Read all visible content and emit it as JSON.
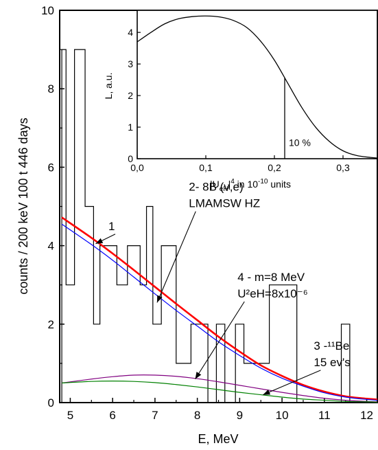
{
  "chart_data": [
    {
      "type": "line",
      "xlabel": "E, MeV",
      "ylabel": "counts / 200 keV 100 t 446 days",
      "xlim": [
        4.75,
        12.25
      ],
      "ylim": [
        0,
        10
      ],
      "x_ticks": [
        5,
        6,
        7,
        8,
        9,
        10,
        11,
        12
      ],
      "y_ticks": [
        0,
        2,
        4,
        6,
        8,
        10
      ],
      "histogram": {
        "name": "data",
        "edges": [
          4.8,
          4.9,
          5.1,
          5.35,
          5.55,
          5.7,
          6.1,
          6.35,
          6.65,
          6.8,
          6.95,
          7.15,
          7.5,
          7.85,
          8.25,
          8.45,
          8.65,
          8.9,
          9.1,
          9.7,
          10.35,
          11.4,
          11.6,
          11.85
        ],
        "counts": [
          9,
          3,
          9,
          5,
          2,
          4,
          3,
          4,
          3,
          5,
          2,
          4,
          1,
          2,
          0,
          2,
          0,
          2,
          1,
          3,
          0,
          2,
          0
        ]
      },
      "series": [
        {
          "color": "#ff0000",
          "x": [
            4.8,
            5.5,
            6,
            6.5,
            7,
            7.5,
            8,
            8.5,
            9,
            9.5,
            10,
            10.5,
            11,
            11.5,
            12,
            12.25
          ],
          "y": [
            4.72,
            4.2,
            3.8,
            3.38,
            2.95,
            2.52,
            2.1,
            1.68,
            1.3,
            0.95,
            0.68,
            0.45,
            0.28,
            0.16,
            0.1,
            0.08
          ]
        },
        {
          "color": "#0000ff",
          "x": [
            4.8,
            5.5,
            6,
            6.5,
            7,
            7.5,
            8,
            8.5,
            9,
            9.5,
            10,
            10.5,
            11,
            11.5,
            12,
            12.25
          ],
          "y": [
            4.55,
            4.03,
            3.63,
            3.2,
            2.77,
            2.35,
            1.95,
            1.55,
            1.2,
            0.88,
            0.62,
            0.42,
            0.25,
            0.14,
            0.08,
            0.06
          ]
        },
        {
          "color": "#800080",
          "x": [
            4.8,
            5.5,
            6,
            6.5,
            7,
            7.5,
            8,
            8.5,
            9,
            9.5,
            10,
            10.5,
            11,
            11.5,
            12,
            12.25
          ],
          "y": [
            0.5,
            0.6,
            0.66,
            0.7,
            0.7,
            0.67,
            0.61,
            0.53,
            0.44,
            0.35,
            0.26,
            0.18,
            0.11,
            0.06,
            0.03,
            0.02
          ]
        },
        {
          "color": "#008000",
          "x": [
            4.8,
            5.5,
            6,
            6.5,
            7,
            7.5,
            8,
            8.5,
            9,
            9.5,
            10,
            10.5,
            11,
            11.5,
            12,
            12.25
          ],
          "y": [
            0.5,
            0.54,
            0.55,
            0.54,
            0.51,
            0.46,
            0.4,
            0.33,
            0.26,
            0.2,
            0.14,
            0.09,
            0.06,
            0.03,
            0.02,
            0.01
          ]
        }
      ],
      "annotations": [
        {
          "text": "1",
          "x": 5.9,
          "y": 4.4,
          "arrow_to": [
            5.6,
            4.05
          ]
        },
        {
          "lines": [
            "2- 8B (ν,e)",
            "LMAMSW HZ"
          ],
          "x": 7.8,
          "y": 5.4,
          "arrow_to": [
            7.05,
            2.55
          ]
        },
        {
          "lines": [
            "4 - m=8 MeV",
            "U²eH=8x10⁻⁶"
          ],
          "x": 8.95,
          "y": 3.1,
          "arrow_to": [
            7.95,
            0.6
          ]
        },
        {
          "lines": [
            "3 -¹¹Be",
            "15 ev's"
          ],
          "x": 10.75,
          "y": 1.35,
          "arrow_to": [
            9.55,
            0.2
          ]
        }
      ]
    },
    {
      "type": "line",
      "xlabel": "|UeH|⁴ in 10⁻¹⁰ units",
      "ylabel": "L, a.u.",
      "xlim": [
        0.0,
        0.35
      ],
      "ylim": [
        0,
        4.7
      ],
      "x_ticks": [
        "0,0",
        "0,1",
        "0,2",
        "0,3"
      ],
      "y_ticks": [
        0,
        1,
        2,
        3,
        4
      ],
      "series": [
        {
          "color": "#000000",
          "x": [
            0,
            0.02,
            0.04,
            0.06,
            0.08,
            0.1,
            0.12,
            0.14,
            0.16,
            0.18,
            0.2,
            0.22,
            0.24,
            0.26,
            0.28,
            0.3,
            0.32,
            0.34,
            0.35
          ],
          "y": [
            3.7,
            4.0,
            4.27,
            4.43,
            4.5,
            4.52,
            4.49,
            4.38,
            4.15,
            3.72,
            3.12,
            2.37,
            1.62,
            1.0,
            0.55,
            0.25,
            0.1,
            0.04,
            0.02
          ]
        }
      ],
      "limit_line_x": 0.215,
      "annotation": "10 %"
    }
  ]
}
